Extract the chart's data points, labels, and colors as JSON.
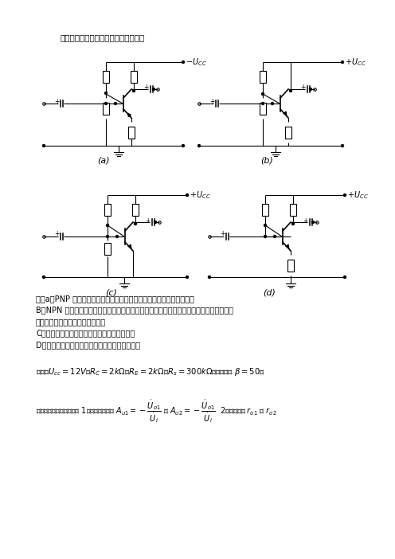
{
  "fig_width": 4.96,
  "fig_height": 7.02,
  "dpi": 100,
  "bg_color": "#ffffff",
  "title": "判断图中各个电路能不能放大交流信号",
  "ucc_a": "$-U_{CC}$",
  "ucc_bcd": "$+U_{CC}$",
  "label_a": "(a)",
  "label_b": "(b)",
  "label_c": "(c)",
  "label_d": "(d)",
  "answers": [
    "解：a）PNP 型，有偏置电阻，电容极性正确，电压极性正确，可以放大",
    "B）NPN 型，电压极性正确，电容极性正确，但无集电极电阻，无法将集电极的电流变化转",
    "化为电压变化，无法实现电压放大",
    "C）能，但无发射极电阻，无法稳定静态工作点",
    "D）输入信号被短路，集电结正偏，无法实现放大"
  ],
  "param_text": "如图，$U_{cc}=12V$，$R_C=2k\\Omega$，$R_E=2k\\Omega$，$R_s=300k\\Omega$，晶体管的 $\\beta=50$。",
  "circuit_text": "电路有两个输出端，试求 1）电压放大倍数 $A_{u1}=-\\dfrac{\\dot{U}_{o1}}{\\dot{U}_i}$ 和 $A_{u2}=-\\dfrac{\\dot{U}_{o1}}{\\dot{U}_i}$  2）输出电阻 $r_{o1}$ 和 $r_{o2}$"
}
